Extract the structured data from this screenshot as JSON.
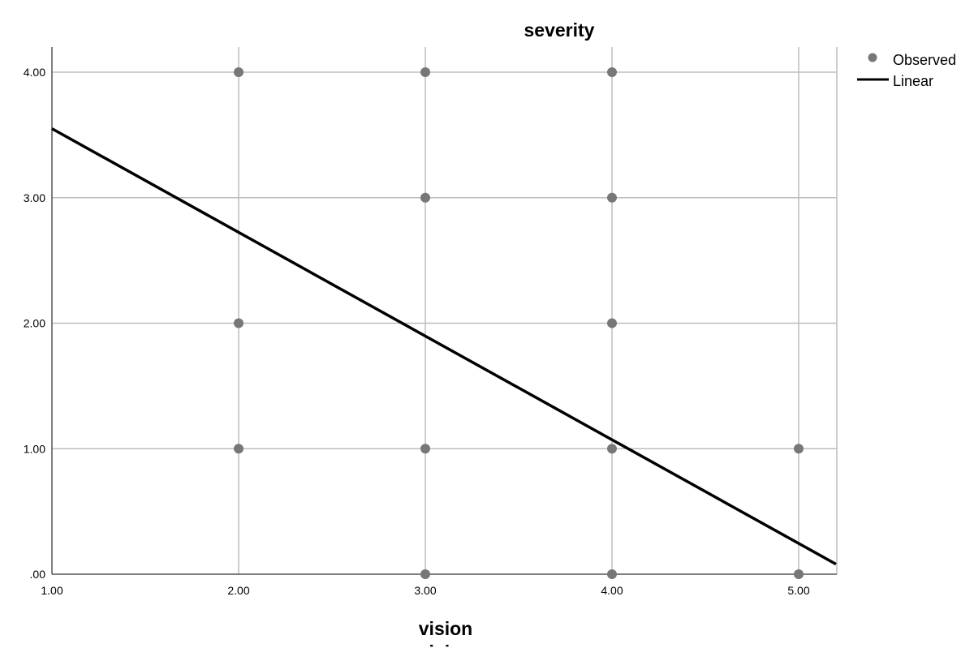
{
  "chart_data": {
    "type": "scatter",
    "title": "severity",
    "xlabel": "vision",
    "ylabel": "",
    "xlim": [
      1.0,
      5.2
    ],
    "ylim": [
      0.0,
      4.2
    ],
    "x_ticks": [
      "1.00",
      "2.00",
      "3.00",
      "4.00",
      "5.00"
    ],
    "x_tick_values": [
      1,
      2,
      3,
      4,
      5
    ],
    "y_ticks": [
      ".00",
      "1.00",
      "2.00",
      "3.00",
      "4.00"
    ],
    "y_tick_values": [
      0,
      1,
      2,
      3,
      4
    ],
    "grid": true,
    "legend_position": "top-right",
    "series": [
      {
        "name": "Observed",
        "kind": "points",
        "color": "#777777",
        "points": [
          [
            2,
            4
          ],
          [
            2,
            2
          ],
          [
            2,
            1
          ],
          [
            3,
            4
          ],
          [
            3,
            3
          ],
          [
            3,
            1
          ],
          [
            3,
            0
          ],
          [
            4,
            4
          ],
          [
            4,
            3
          ],
          [
            4,
            2
          ],
          [
            4,
            1
          ],
          [
            4,
            0
          ],
          [
            5,
            1
          ],
          [
            5,
            0
          ]
        ]
      },
      {
        "name": "Linear",
        "kind": "line",
        "color": "#000000",
        "line": {
          "x": [
            1.0,
            5.2
          ],
          "y": [
            3.55,
            0.08
          ]
        }
      }
    ]
  }
}
